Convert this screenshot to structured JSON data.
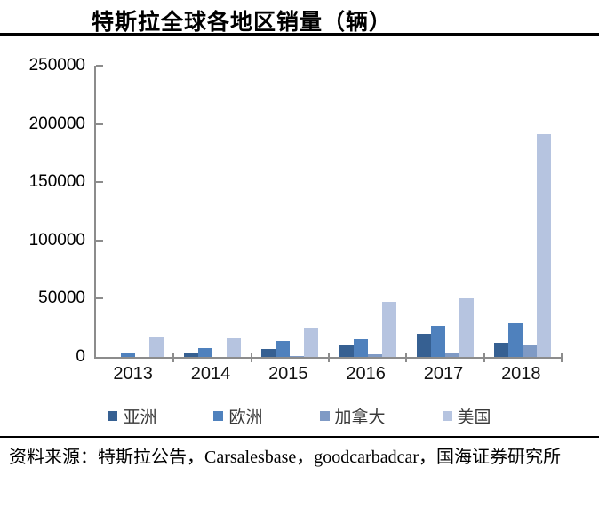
{
  "title": "特斯拉全球各地区销量（辆）",
  "source_note": "资料来源：特斯拉公告，Carsalesbase，goodcarbadcar，国海证券研究所",
  "colors": {
    "axis": "#8C8C8C",
    "divider": "#000000",
    "title_text": "#000000",
    "tick_text": "#000000",
    "legend_text": "#3A3A3A"
  },
  "chart_data": {
    "type": "bar",
    "title": "特斯拉全球各地区销量（辆）",
    "categories": [
      "2013",
      "2014",
      "2015",
      "2016",
      "2017",
      "2018"
    ],
    "series": [
      {
        "key": "asia",
        "name": "亚洲",
        "color": "#366092",
        "values": [
          0,
          4000,
          7000,
          10000,
          20000,
          12000
        ]
      },
      {
        "key": "europe",
        "name": "欧洲",
        "color": "#4F81BD",
        "values": [
          3500,
          8000,
          14000,
          15000,
          27000,
          29000
        ]
      },
      {
        "key": "canada",
        "name": "加拿大",
        "color": "#7F9AC5",
        "values": [
          0,
          0,
          1000,
          2000,
          4000,
          10500
        ]
      },
      {
        "key": "usa",
        "name": "美国",
        "color": "#B6C4E0",
        "values": [
          17000,
          16000,
          25000,
          47000,
          50000,
          191000
        ]
      }
    ],
    "xlabel": "",
    "ylabel": "",
    "ylim": [
      0,
      250000
    ],
    "ytick_values": [
      0,
      50000,
      100000,
      150000,
      200000,
      250000
    ],
    "ytick_labels": [
      "0",
      "50000",
      "100000",
      "150000",
      "200000",
      "250000"
    ],
    "grid": false,
    "legend_position": "bottom"
  }
}
